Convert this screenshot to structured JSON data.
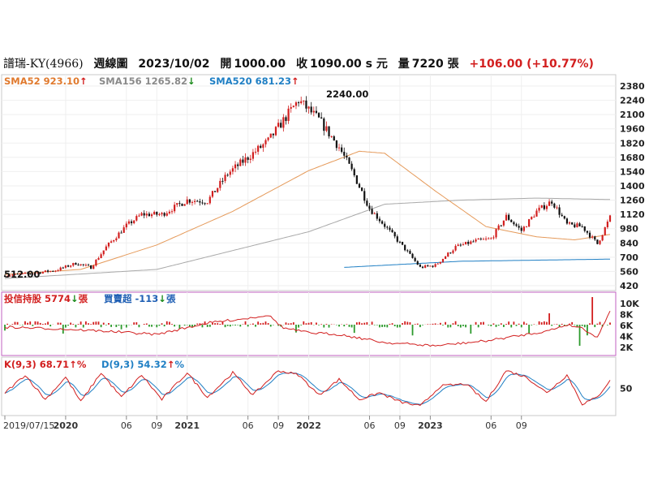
{
  "header": {
    "name": "譜瑞-KY(4966)",
    "period": "週線圖",
    "date": "2023/10/02",
    "open_label": "開",
    "open": "1000.00",
    "close_label": "收",
    "close": "1090.00 s 元",
    "volume_label": "量",
    "volume": "7220 張",
    "change": "+106.00 (+10.77%)"
  },
  "legend_price": [
    {
      "label": "SMA52 923.10",
      "arrow": "↑",
      "color": "#e07a2e",
      "arrow_color": "#d21e1e"
    },
    {
      "label": "SMA156 1265.82",
      "arrow": "↓",
      "color": "#8a8a8a",
      "arrow_color": "#1a8a1a"
    },
    {
      "label": "SMA520 681.23",
      "arrow": "↑",
      "color": "#1f7fc4",
      "arrow_color": "#d21e1e"
    }
  ],
  "legend_inst": [
    {
      "label": "投信持股 5774",
      "arrow": "↓",
      "suffix": "張",
      "color": "#d21e1e",
      "arrow_color": "#1a8a1a"
    },
    {
      "label": "買賣超 -113",
      "arrow": "↓",
      "suffix": "張",
      "color": "#1f5fb4",
      "arrow_color": "#1a8a1a"
    }
  ],
  "legend_kd": [
    {
      "label": "K(9,3) 68.71",
      "arrow": "↑",
      "suffix": "%",
      "color": "#d21e1e",
      "arrow_color": "#d21e1e"
    },
    {
      "label": "D(9,3) 54.32",
      "arrow": "↑",
      "suffix": "%",
      "color": "#1f7fc4",
      "arrow_color": "#d21e1e"
    }
  ],
  "annotations": {
    "high": "2240.00",
    "low": "512.00"
  },
  "colors": {
    "up": "#d21e1e",
    "down": "#111111",
    "sma52": "#e59a5a",
    "sma156": "#a8a8a8",
    "sma520": "#1f7fc4",
    "kline": "#d21e1e",
    "dline": "#1f7fc4",
    "inst_line": "#d21e1e",
    "bar_up": "#d21e1e",
    "bar_down": "#2c9a2c",
    "panel_border": "#c060c0"
  },
  "chart_data": {
    "type": "candlestick",
    "price_axis": {
      "ticks": [
        "2380",
        "2240",
        "2100",
        "1960",
        "1820",
        "1680",
        "1540",
        "1400",
        "1260",
        "1120",
        "980",
        "840",
        "700",
        "560",
        "420"
      ],
      "range": [
        380,
        2420
      ]
    },
    "inst_axis": {
      "ticks": [
        "10K",
        "8K",
        "6K",
        "4K",
        "2K"
      ]
    },
    "kd_axis": {
      "ticks": [
        "50"
      ]
    },
    "x_labels": [
      "2019/07/15",
      "2020",
      "06",
      "09",
      "2021",
      "06",
      "09",
      "2022",
      "06",
      "09",
      "2023",
      "06",
      "09"
    ],
    "price_keyframes": [
      [
        0,
        520
      ],
      [
        10,
        540
      ],
      [
        20,
        570
      ],
      [
        28,
        640
      ],
      [
        34,
        600
      ],
      [
        40,
        800
      ],
      [
        48,
        1010
      ],
      [
        54,
        1120
      ],
      [
        62,
        1120
      ],
      [
        72,
        1260
      ],
      [
        80,
        1250
      ],
      [
        88,
        1520
      ],
      [
        96,
        1680
      ],
      [
        104,
        1840
      ],
      [
        112,
        2110
      ],
      [
        116,
        2240
      ],
      [
        124,
        2050
      ],
      [
        132,
        1780
      ],
      [
        138,
        1500
      ],
      [
        144,
        1180
      ],
      [
        150,
        1010
      ],
      [
        158,
        780
      ],
      [
        164,
        600
      ],
      [
        170,
        620
      ],
      [
        178,
        800
      ],
      [
        186,
        860
      ],
      [
        192,
        880
      ],
      [
        198,
        1100
      ],
      [
        204,
        960
      ],
      [
        210,
        1150
      ],
      [
        216,
        1250
      ],
      [
        222,
        1020
      ],
      [
        228,
        1000
      ],
      [
        234,
        830
      ],
      [
        239,
        1090
      ]
    ],
    "sma52_keyframes": [
      [
        0,
        530
      ],
      [
        30,
        580
      ],
      [
        60,
        820
      ],
      [
        90,
        1150
      ],
      [
        120,
        1550
      ],
      [
        140,
        1740
      ],
      [
        150,
        1720
      ],
      [
        170,
        1350
      ],
      [
        190,
        1000
      ],
      [
        210,
        900
      ],
      [
        225,
        870
      ],
      [
        239,
        923
      ]
    ],
    "sma156_keyframes": [
      [
        0,
        490
      ],
      [
        60,
        580
      ],
      [
        120,
        950
      ],
      [
        150,
        1220
      ],
      [
        180,
        1260
      ],
      [
        210,
        1280
      ],
      [
        239,
        1266
      ]
    ],
    "sma520_keyframes": [
      [
        134,
        600
      ],
      [
        180,
        660
      ],
      [
        239,
        681
      ]
    ],
    "kd_keyframes": [
      [
        0,
        40
      ],
      [
        8,
        80
      ],
      [
        16,
        25
      ],
      [
        24,
        75
      ],
      [
        30,
        20
      ],
      [
        38,
        85
      ],
      [
        46,
        30
      ],
      [
        54,
        80
      ],
      [
        62,
        25
      ],
      [
        72,
        85
      ],
      [
        80,
        30
      ],
      [
        90,
        85
      ],
      [
        98,
        35
      ],
      [
        108,
        90
      ],
      [
        116,
        80
      ],
      [
        124,
        35
      ],
      [
        132,
        70
      ],
      [
        140,
        25
      ],
      [
        148,
        40
      ],
      [
        156,
        20
      ],
      [
        164,
        10
      ],
      [
        172,
        55
      ],
      [
        182,
        60
      ],
      [
        190,
        20
      ],
      [
        198,
        90
      ],
      [
        206,
        75
      ],
      [
        214,
        40
      ],
      [
        222,
        80
      ],
      [
        228,
        15
      ],
      [
        234,
        30
      ],
      [
        239,
        69
      ]
    ]
  }
}
